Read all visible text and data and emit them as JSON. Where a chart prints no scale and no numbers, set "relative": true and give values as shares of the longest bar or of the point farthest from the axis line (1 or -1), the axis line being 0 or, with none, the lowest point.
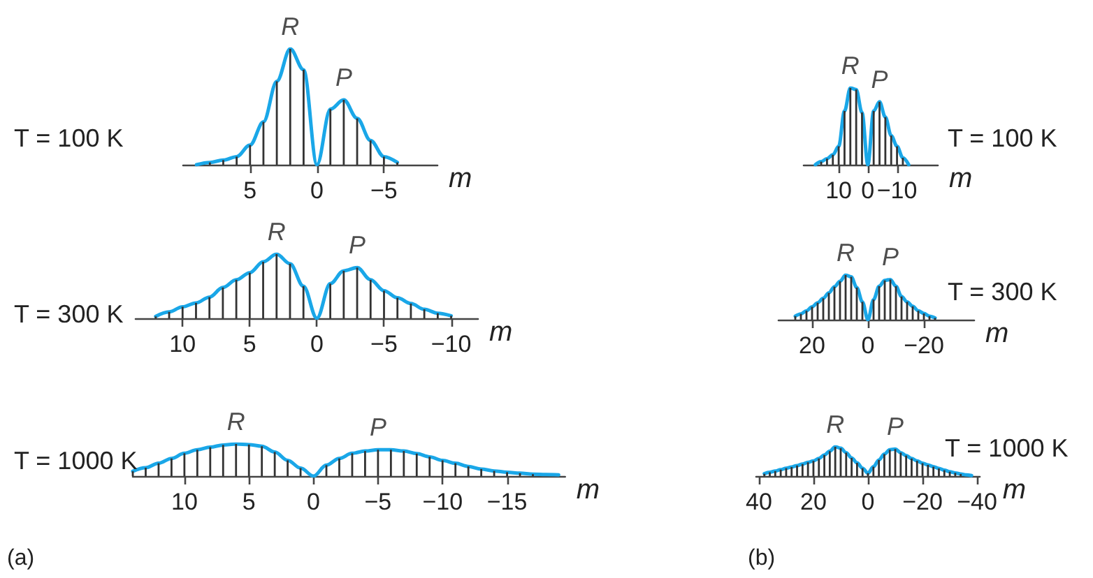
{
  "chart_data": [
    {
      "type": "line",
      "title": "T = 100 K",
      "xlabel": "m",
      "relative": true,
      "xlim": [
        10,
        -9
      ],
      "xticks": [
        5,
        0,
        -5
      ],
      "x": [
        9,
        8,
        7,
        6,
        5,
        4,
        3,
        2,
        1,
        0,
        -1,
        -2,
        -3,
        -4,
        -5,
        -6
      ],
      "series": [
        {
          "marker": "none",
          "color": "#1aa7e8",
          "values": [
            0,
            0.02,
            0.04,
            0.07,
            0.17,
            0.37,
            0.72,
            1.0,
            0.82,
            0,
            0.48,
            0.56,
            0.4,
            0.21,
            0.07,
            0.02
          ]
        },
        {
          "type": "bar",
          "color": "#333333",
          "values": [
            0,
            0.02,
            0.04,
            0.07,
            0.17,
            0.37,
            0.72,
            1.0,
            0.82,
            0,
            0.48,
            0.56,
            0.4,
            0.21,
            0.07,
            0.02
          ]
        }
      ],
      "annotations": [
        {
          "text": "R",
          "x": 2,
          "y": 1.0
        },
        {
          "text": "P",
          "x": -2,
          "y": 0.56
        }
      ]
    },
    {
      "type": "line",
      "title": "T = 100 K",
      "xlabel": "m",
      "relative": true,
      "xlim": [
        22,
        -24
      ],
      "xticks": [
        10,
        0,
        -10
      ],
      "x": [
        18,
        16,
        14,
        12,
        10,
        8,
        6,
        4,
        2,
        0,
        -2,
        -4,
        -6,
        -8,
        -10,
        -12,
        -14
      ],
      "series": [
        {
          "marker": "none",
          "color": "#1aa7e8",
          "values": [
            0,
            0.04,
            0.08,
            0.13,
            0.24,
            0.7,
            1.0,
            0.98,
            0.68,
            0,
            0.7,
            0.82,
            0.62,
            0.38,
            0.24,
            0.09,
            0
          ]
        },
        {
          "type": "bar",
          "color": "#333333",
          "values": [
            0,
            0.04,
            0.08,
            0.13,
            0.24,
            0.7,
            1.0,
            0.98,
            0.68,
            0,
            0.7,
            0.82,
            0.62,
            0.38,
            0.24,
            0.09,
            0
          ]
        }
      ],
      "annotations": [
        {
          "text": "R",
          "x": 6,
          "y": 1.0
        },
        {
          "text": "P",
          "x": -4,
          "y": 0.82
        }
      ]
    },
    {
      "type": "line",
      "title": "T = 300 K",
      "xlabel": "m",
      "relative": true,
      "xlim": [
        13.5,
        -12
      ],
      "xticks": [
        10,
        5,
        0,
        -5,
        -10
      ],
      "x": [
        12,
        11,
        10,
        9,
        8,
        7,
        6,
        5,
        4,
        3,
        2,
        1,
        0,
        -1,
        -2,
        -3,
        -4,
        -5,
        -6,
        -7,
        -8,
        -9,
        -10
      ],
      "series": [
        {
          "marker": "none",
          "color": "#1aa7e8",
          "values": [
            0.03,
            0.1,
            0.18,
            0.24,
            0.33,
            0.48,
            0.6,
            0.71,
            0.88,
            1.0,
            0.85,
            0.5,
            0,
            0.54,
            0.74,
            0.79,
            0.6,
            0.43,
            0.32,
            0.23,
            0.14,
            0.08,
            0.04
          ]
        },
        {
          "type": "bar",
          "color": "#333333",
          "values": [
            0.03,
            0.1,
            0.18,
            0.24,
            0.33,
            0.48,
            0.6,
            0.71,
            0.88,
            1.0,
            0.85,
            0.5,
            0,
            0.54,
            0.74,
            0.79,
            0.6,
            0.43,
            0.32,
            0.23,
            0.14,
            0.08,
            0.04
          ]
        }
      ],
      "annotations": [
        {
          "text": "R",
          "x": 3,
          "y": 1.0
        },
        {
          "text": "P",
          "x": -3,
          "y": 0.79
        }
      ]
    },
    {
      "type": "line",
      "title": "T = 300 K",
      "xlabel": "m",
      "relative": true,
      "xlim": [
        32,
        -38
      ],
      "xticks": [
        20,
        0,
        -20
      ],
      "x": [
        26,
        24,
        22,
        20,
        18,
        16,
        14,
        12,
        10,
        8,
        6,
        4,
        2,
        0,
        -2,
        -4,
        -6,
        -8,
        -10,
        -12,
        -14,
        -16,
        -18,
        -20,
        -22,
        -24
      ],
      "series": [
        {
          "marker": "none",
          "color": "#1aa7e8",
          "values": [
            0.08,
            0.13,
            0.2,
            0.29,
            0.38,
            0.48,
            0.6,
            0.74,
            0.86,
            1.0,
            0.96,
            0.72,
            0.4,
            0,
            0.45,
            0.75,
            0.88,
            0.9,
            0.75,
            0.52,
            0.4,
            0.3,
            0.2,
            0.14,
            0.08,
            0.04
          ]
        },
        {
          "type": "bar",
          "color": "#333333",
          "values": [
            0.08,
            0.13,
            0.2,
            0.29,
            0.38,
            0.48,
            0.6,
            0.74,
            0.86,
            1.0,
            0.96,
            0.72,
            0.4,
            0,
            0.45,
            0.75,
            0.88,
            0.9,
            0.75,
            0.52,
            0.4,
            0.3,
            0.2,
            0.14,
            0.08,
            0.04
          ]
        }
      ],
      "annotations": [
        {
          "text": "R",
          "x": 8,
          "y": 1.0
        },
        {
          "text": "P",
          "x": -8,
          "y": 0.9
        }
      ]
    },
    {
      "type": "line",
      "title": "T = 1000 K",
      "xlabel": "m",
      "relative": true,
      "xlim": [
        14,
        -19.5
      ],
      "xticks": [
        10,
        5,
        0,
        -5,
        -10,
        -15
      ],
      "x": [
        14,
        13,
        12,
        11,
        10,
        9,
        8,
        7,
        6,
        5,
        4,
        3,
        2,
        1,
        0,
        -1,
        -2,
        -3,
        -4,
        -5,
        -6,
        -7,
        -8,
        -9,
        -10,
        -11,
        -12,
        -13,
        -14,
        -15,
        -16,
        -17,
        -18,
        -19
      ],
      "series": [
        {
          "marker": "none",
          "color": "#1aa7e8",
          "values": [
            0.15,
            0.26,
            0.4,
            0.55,
            0.71,
            0.82,
            0.9,
            0.97,
            1.0,
            0.98,
            0.93,
            0.75,
            0.49,
            0.25,
            0,
            0.34,
            0.55,
            0.71,
            0.78,
            0.82,
            0.82,
            0.78,
            0.7,
            0.6,
            0.49,
            0.4,
            0.3,
            0.22,
            0.16,
            0.12,
            0.09,
            0.06,
            0.05,
            0.04
          ]
        },
        {
          "type": "bar",
          "color": "#333333",
          "values": [
            0.15,
            0.26,
            0.4,
            0.55,
            0.71,
            0.82,
            0.9,
            0.97,
            1.0,
            0.98,
            0.93,
            0.75,
            0.49,
            0.25,
            0,
            0.34,
            0.55,
            0.71,
            0.78,
            0.82,
            0.82,
            0.78,
            0.7,
            0.6,
            0.49,
            0.4,
            0.3,
            0.22,
            0.16,
            0.12,
            0.09,
            0.06,
            null,
            null
          ]
        }
      ],
      "annotations": [
        {
          "text": "R",
          "x": 6,
          "y": 1.0
        },
        {
          "text": "P",
          "x": -5,
          "y": 0.82
        },
        "(a)"
      ]
    },
    {
      "type": "line",
      "title": "T = 1000 K",
      "xlabel": "m",
      "relative": true,
      "xlim": [
        41,
        -41
      ],
      "xticks": [
        40,
        20,
        0,
        -20,
        -40
      ],
      "x": [
        38,
        36,
        34,
        32,
        30,
        28,
        26,
        24,
        22,
        20,
        18,
        16,
        14,
        12,
        10,
        8,
        6,
        4,
        2,
        0,
        -2,
        -4,
        -6,
        -8,
        -10,
        -12,
        -14,
        -16,
        -18,
        -20,
        -22,
        -24,
        -26,
        -28,
        -30,
        -32,
        -34,
        -36,
        -38
      ],
      "series": [
        {
          "marker": "none",
          "color": "#1aa7e8",
          "values": [
            0.08,
            0.13,
            0.17,
            0.22,
            0.27,
            0.31,
            0.36,
            0.41,
            0.47,
            0.52,
            0.6,
            0.72,
            0.85,
            1.0,
            0.95,
            0.8,
            0.62,
            0.45,
            0.27,
            0.1,
            0.32,
            0.55,
            0.75,
            0.9,
            0.92,
            0.8,
            0.7,
            0.6,
            0.52,
            0.44,
            0.38,
            0.32,
            0.26,
            0.2,
            0.15,
            0.11,
            0.07,
            0.04,
            0.02
          ]
        },
        {
          "type": "bar",
          "color": "#333333",
          "values": [
            0.08,
            0.13,
            0.17,
            0.22,
            0.27,
            0.31,
            0.36,
            0.41,
            0.47,
            0.52,
            0.6,
            0.72,
            0.85,
            1.0,
            0.95,
            0.8,
            0.62,
            0.45,
            0.27,
            0.1,
            0.32,
            0.55,
            0.75,
            0.9,
            0.92,
            0.8,
            0.7,
            0.6,
            0.52,
            0.44,
            0.38,
            0.32,
            0.26,
            0.2,
            0.15,
            0.11,
            0.07,
            null,
            null
          ]
        }
      ],
      "annotations": [
        {
          "text": "R",
          "x": 12,
          "y": 1.0
        },
        {
          "text": "P",
          "x": -10,
          "y": 0.92
        },
        "(b)"
      ]
    }
  ]
}
